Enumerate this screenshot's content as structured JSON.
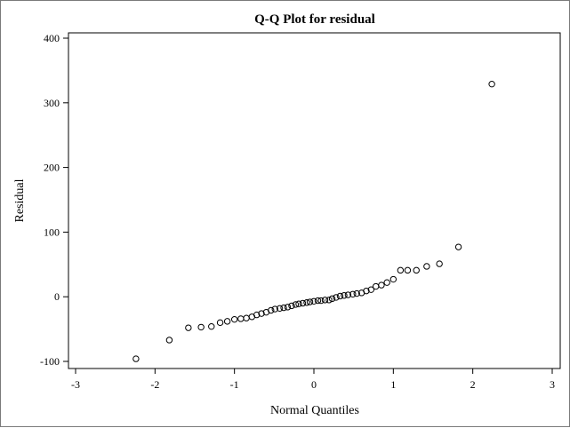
{
  "chart_data": {
    "type": "scatter",
    "title": "Q-Q Plot for residual",
    "xlabel": "Normal Quantiles",
    "ylabel": "Residual",
    "xlim": [
      -3.0,
      3.0
    ],
    "ylim": [
      -100,
      400
    ],
    "x_ticks": [
      -3,
      -2,
      -1,
      0,
      1,
      2,
      3
    ],
    "y_ticks": [
      -100,
      0,
      100,
      200,
      300,
      400
    ],
    "x_tick_labels": [
      "-3",
      "-2",
      "-1",
      "0",
      "1",
      "2",
      "3"
    ],
    "y_tick_labels": [
      "-100",
      "0",
      "100",
      "200",
      "300",
      "400"
    ],
    "grid": false,
    "marker": "open-circle",
    "color": "#000000",
    "points": [
      [
        -2.24,
        -96
      ],
      [
        -1.82,
        -67
      ],
      [
        -1.58,
        -48
      ],
      [
        -1.42,
        -47
      ],
      [
        -1.29,
        -46
      ],
      [
        -1.18,
        -40
      ],
      [
        -1.09,
        -38
      ],
      [
        -1.0,
        -35
      ],
      [
        -0.92,
        -34
      ],
      [
        -0.85,
        -33
      ],
      [
        -0.78,
        -31
      ],
      [
        -0.72,
        -28
      ],
      [
        -0.66,
        -26
      ],
      [
        -0.6,
        -24
      ],
      [
        -0.54,
        -21
      ],
      [
        -0.49,
        -19
      ],
      [
        -0.43,
        -18
      ],
      [
        -0.38,
        -17
      ],
      [
        -0.33,
        -16
      ],
      [
        -0.28,
        -14
      ],
      [
        -0.23,
        -12
      ],
      [
        -0.19,
        -11
      ],
      [
        -0.14,
        -10
      ],
      [
        -0.09,
        -9
      ],
      [
        -0.05,
        -8
      ],
      [
        0.0,
        -7
      ],
      [
        0.05,
        -6
      ],
      [
        0.09,
        -6
      ],
      [
        0.14,
        -5
      ],
      [
        0.19,
        -5
      ],
      [
        0.23,
        -3
      ],
      [
        0.28,
        -1
      ],
      [
        0.33,
        1
      ],
      [
        0.38,
        2
      ],
      [
        0.43,
        3
      ],
      [
        0.49,
        4
      ],
      [
        0.54,
        5
      ],
      [
        0.6,
        6
      ],
      [
        0.66,
        9
      ],
      [
        0.72,
        11
      ],
      [
        0.78,
        16
      ],
      [
        0.85,
        18
      ],
      [
        0.92,
        22
      ],
      [
        1.0,
        27
      ],
      [
        1.09,
        41
      ],
      [
        1.18,
        41
      ],
      [
        1.29,
        41
      ],
      [
        1.42,
        47
      ],
      [
        1.58,
        51
      ],
      [
        1.82,
        77
      ],
      [
        2.24,
        329
      ]
    ]
  }
}
